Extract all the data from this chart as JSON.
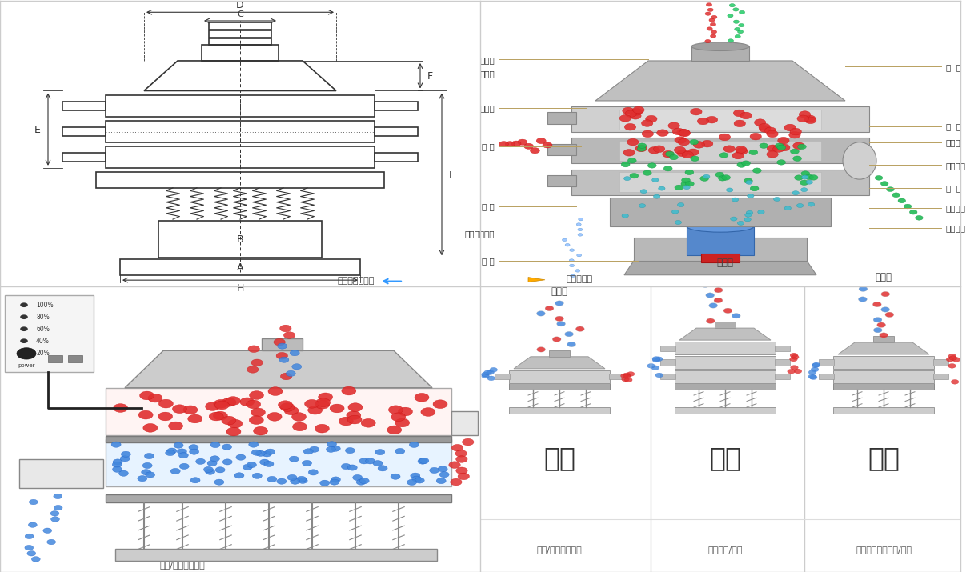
{
  "bg_color": "#ffffff",
  "border_color": "#cccccc",
  "top_left_panel": {
    "label_color": "#555555",
    "line_color": "#333333",
    "dim_labels": [
      "A",
      "B",
      "C",
      "D",
      "E",
      "F",
      "H",
      "I"
    ],
    "footer_text": "外形尺寸示意图",
    "arrow_color": "#3399ff"
  },
  "top_right_panel": {
    "left_labels": [
      "进料口",
      "防尘盖",
      "出料口",
      "束 环",
      "弹 簧",
      "运输固定螺栓",
      "机 座"
    ],
    "right_labels": [
      "筛  网",
      "网  架",
      "加重块",
      "上部重锤",
      "筛  盘",
      "振动电机",
      "下部重锤"
    ],
    "footer_text": "结构示意图",
    "arrow_color": "#ffaa00"
  },
  "bottom_left_panel": {
    "control_box_labels": [
      "100%",
      "80%",
      "60%",
      "40%",
      "20%"
    ],
    "control_label": "power"
  },
  "bottom_panels": [
    {
      "title": "分级",
      "subtitle": "颗粒/粉末准确分级",
      "small_label": "单层式"
    },
    {
      "title": "过滤",
      "subtitle": "去除异物/结块",
      "small_label": "三层式"
    },
    {
      "title": "除杂",
      "subtitle": "去除液体中的颗粒/异物",
      "small_label": "双层式"
    }
  ],
  "title_color": "#333333",
  "subtitle_color": "#555555",
  "small_label_color": "#666666",
  "red_particle": "#e03030",
  "blue_particle": "#4488dd",
  "green_particle": "#22aa66",
  "cyan_particle": "#44bbcc",
  "line_color_annotation": "#b8a060"
}
